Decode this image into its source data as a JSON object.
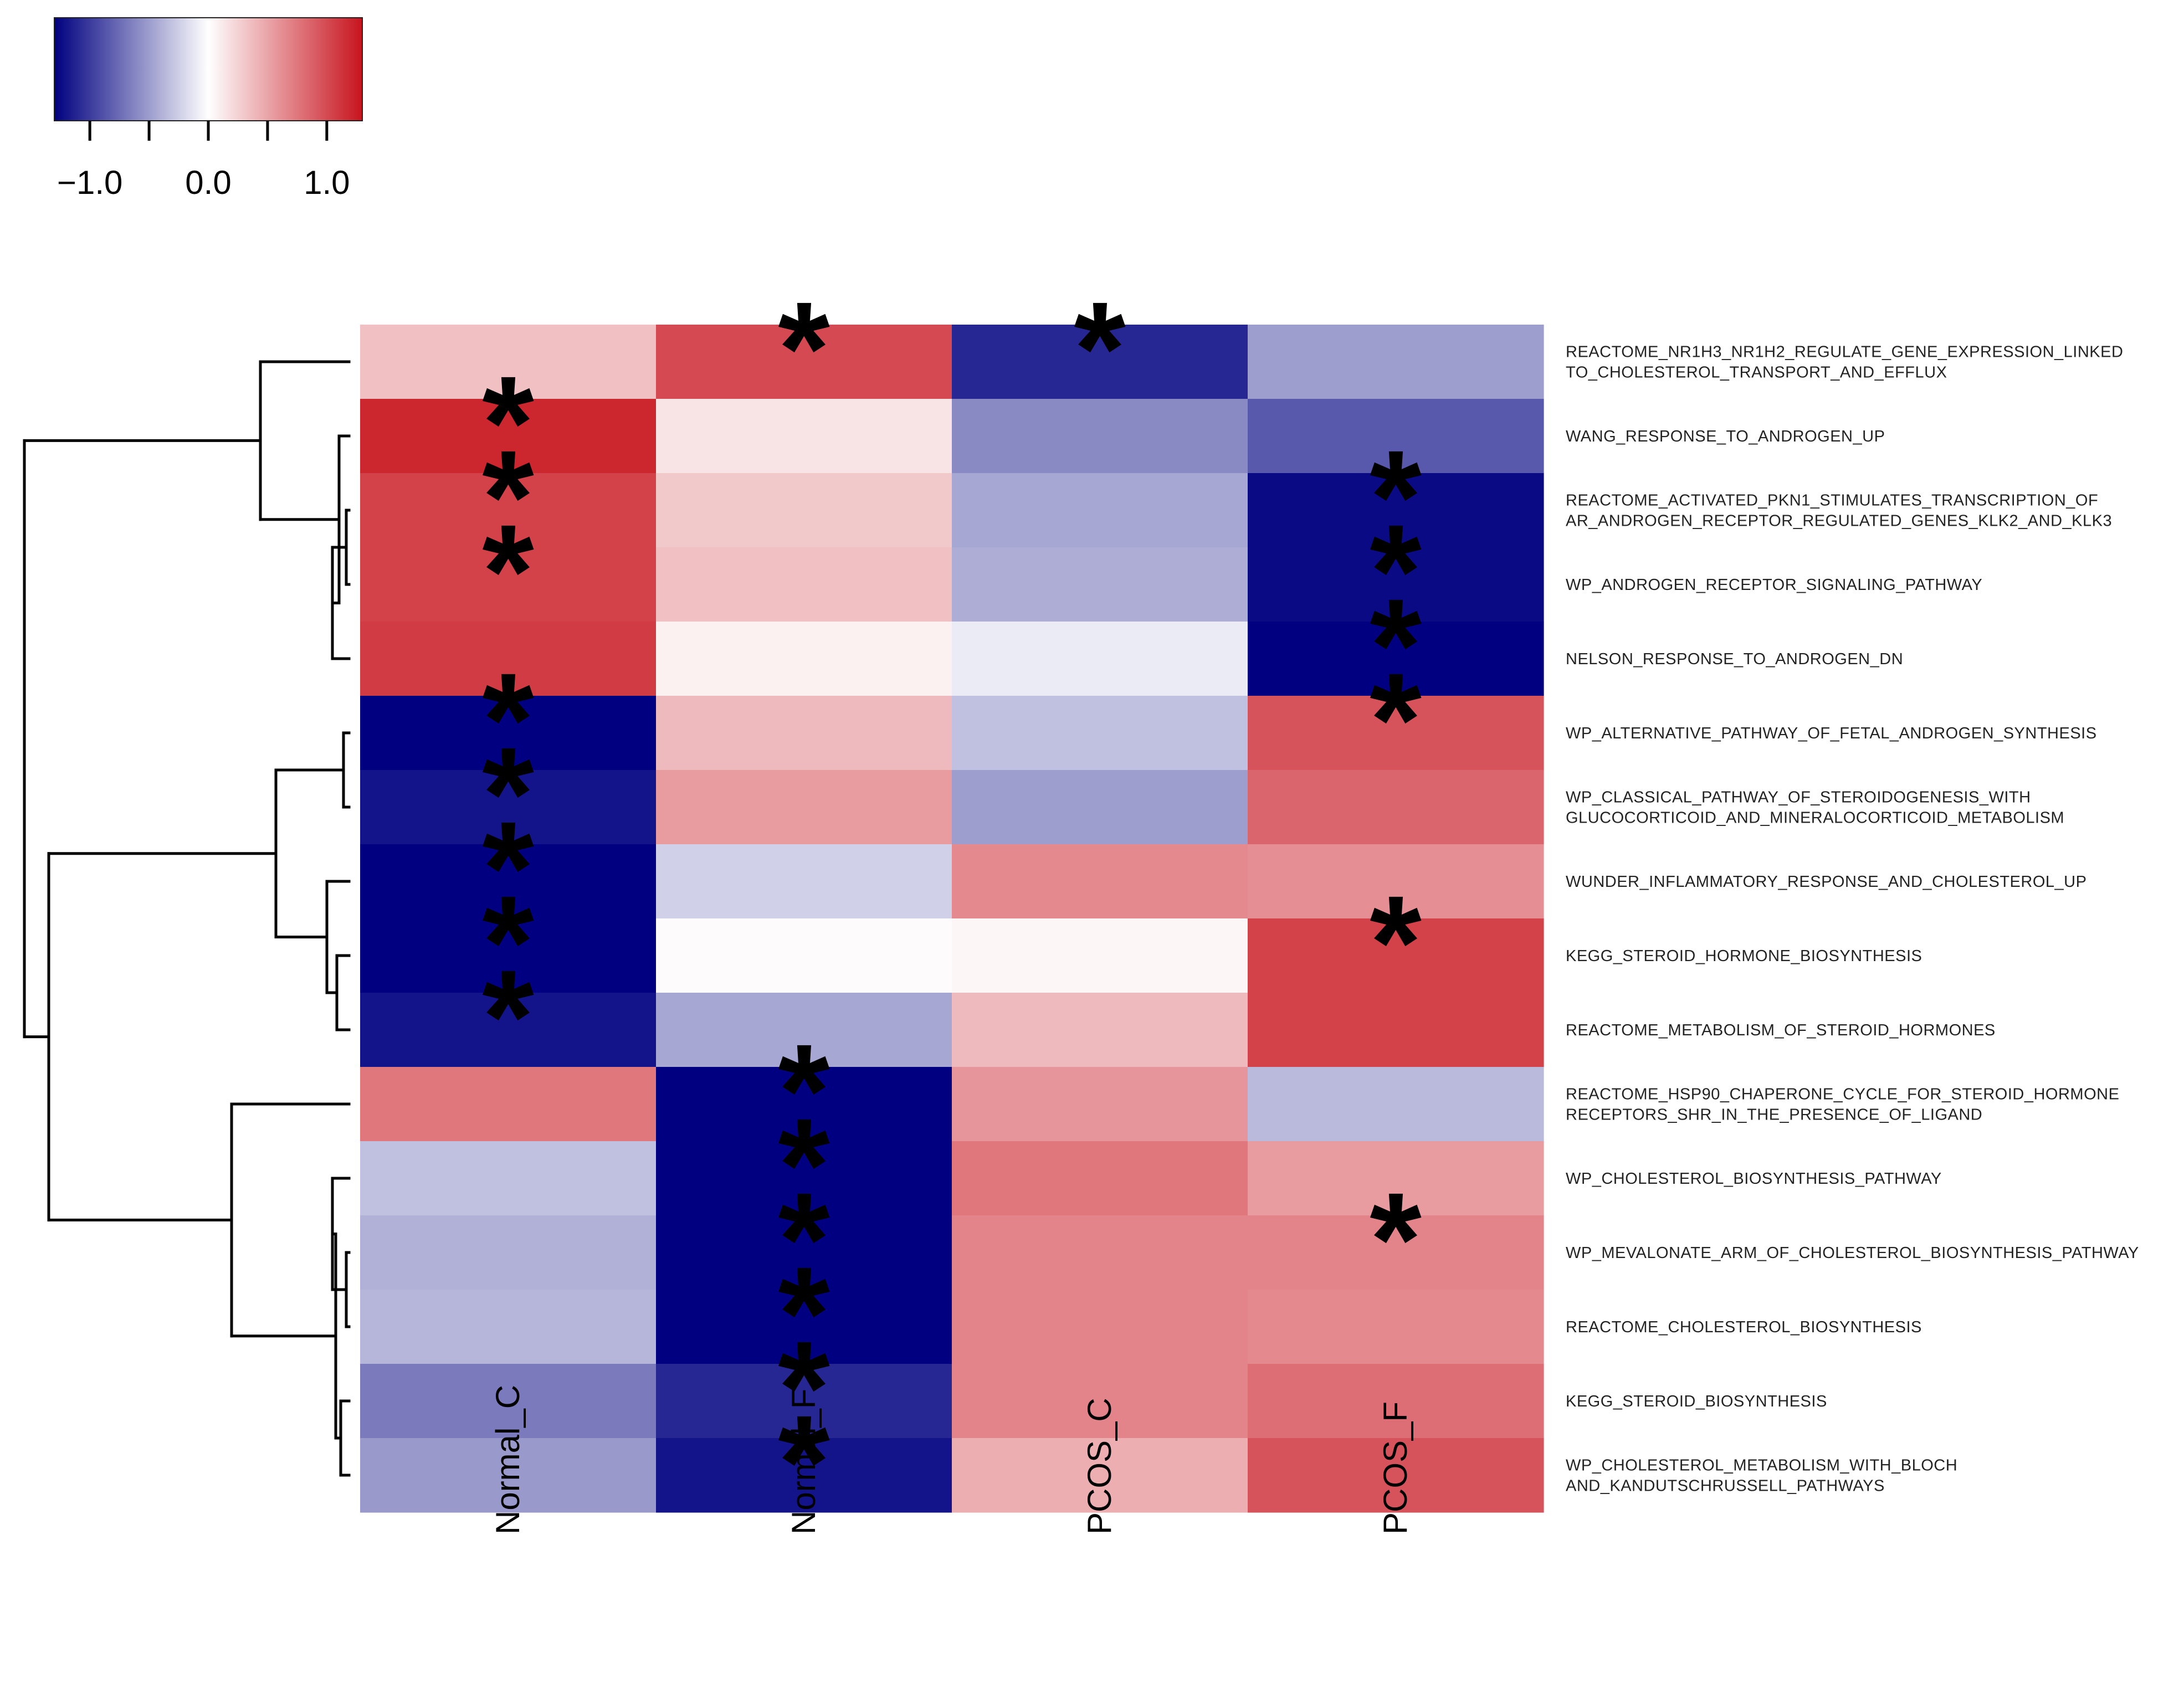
{
  "chart_data": {
    "type": "heatmap",
    "title": "",
    "columns": [
      "Normal_C",
      "Normal_F",
      "PCOS_C",
      "PCOS_F"
    ],
    "rows": [
      "REACTOME_NR1H3_NR1H2_REGULATE_GENE_EXPRESSION_LINKED_TO_CHOLESTEROL_TRANSPORT_AND_EFFLUX",
      "WANG_RESPONSE_TO_ANDROGEN_UP",
      "REACTOME_ACTIVATED_PKN1_STIMULATES_TRANSCRIPTION_OF_AR_ANDROGEN_RECEPTOR_REGULATED_GENES_KLK2_AND_KLK3",
      "WP_ANDROGEN_RECEPTOR_SIGNALING_PATHWAY",
      "NELSON_RESPONSE_TO_ANDROGEN_DN",
      "WP_ALTERNATIVE_PATHWAY_OF_FETAL_ANDROGEN_SYNTHESIS",
      "WP_CLASSICAL_PATHWAY_OF_STEROIDOGENESIS_WITH_GLUCOCORTICOID_AND_MINERALOCORTICOID_METABOLISM",
      "WUNDER_INFLAMMATORY_RESPONSE_AND_CHOLESTEROL_UP",
      "KEGG_STEROID_HORMONE_BIOSYNTHESIS",
      "REACTOME_METABOLISM_OF_STEROID_HORMONES",
      "REACTOME_HSP90_CHAPERONE_CYCLE_FOR_STEROID_HORMONE_RECEPTORS_SHR_IN_THE_PRESENCE_OF_LIGAND",
      "WP_CHOLESTEROL_BIOSYNTHESIS_PATHWAY",
      "WP_MEVALONATE_ARM_OF_CHOLESTEROL_BIOSYNTHESIS_PATHWAY",
      "REACTOME_CHOLESTEROL_BIOSYNTHESIS",
      "KEGG_STEROID_BIOSYNTHESIS",
      "WP_CHOLESTEROL_METABOLISM_WITH_BLOCH_AND_KANDUTSCHRUSSELL_PATHWAYS"
    ],
    "row_labels_display": [
      [
        "REACTOME_NR1H3_NR1H2_REGULATE_GENE_EXPRESSION_LINKED",
        "TO_CHOLESTEROL_TRANSPORT_AND_EFFLUX"
      ],
      [
        "WANG_RESPONSE_TO_ANDROGEN_UP"
      ],
      [
        "REACTOME_ACTIVATED_PKN1_STIMULATES_TRANSCRIPTION_OF",
        "AR_ANDROGEN_RECEPTOR_REGULATED_GENES_KLK2_AND_KLK3"
      ],
      [
        "WP_ANDROGEN_RECEPTOR_SIGNALING_PATHWAY"
      ],
      [
        "NELSON_RESPONSE_TO_ANDROGEN_DN"
      ],
      [
        "WP_ALTERNATIVE_PATHWAY_OF_FETAL_ANDROGEN_SYNTHESIS"
      ],
      [
        "WP_CLASSICAL_PATHWAY_OF_STEROIDOGENESIS_WITH",
        "GLUCOCORTICOID_AND_MINERALOCORTICOID_METABOLISM"
      ],
      [
        "WUNDER_INFLAMMATORY_RESPONSE_AND_CHOLESTEROL_UP"
      ],
      [
        "KEGG_STEROID_HORMONE_BIOSYNTHESIS"
      ],
      [
        "REACTOME_METABOLISM_OF_STEROID_HORMONES"
      ],
      [
        "REACTOME_HSP90_CHAPERONE_CYCLE_FOR_STEROID_HORMONE",
        "RECEPTORS_SHR_IN_THE_PRESENCE_OF_LIGAND"
      ],
      [
        "WP_CHOLESTEROL_BIOSYNTHESIS_PATHWAY"
      ],
      [
        "WP_MEVALONATE_ARM_OF_CHOLESTEROL_BIOSYNTHESIS_PATHWAY"
      ],
      [
        "REACTOME_CHOLESTEROL_BIOSYNTHESIS"
      ],
      [
        "KEGG_STEROID_BIOSYNTHESIS"
      ],
      [
        "WP_CHOLESTEROL_METABOLISM_WITH_BLOCH",
        "AND_KANDUTSCHRUSSELL_PATHWAYS"
      ]
    ],
    "values": [
      [
        0.35,
        1.0,
        -1.1,
        -0.5
      ],
      [
        1.2,
        0.15,
        -0.6,
        -0.85
      ],
      [
        1.05,
        0.3,
        -0.45,
        -1.25
      ],
      [
        1.05,
        0.35,
        -0.42,
        -1.25
      ],
      [
        1.08,
        0.08,
        -0.1,
        -1.45
      ],
      [
        -1.3,
        0.38,
        -0.32,
        0.95
      ],
      [
        -1.2,
        0.55,
        -0.5,
        0.85
      ],
      [
        -1.5,
        -0.24,
        0.65,
        0.62
      ],
      [
        -1.4,
        0.02,
        0.05,
        1.05
      ],
      [
        -1.2,
        -0.45,
        0.38,
        1.05
      ],
      [
        0.75,
        -1.45,
        0.58,
        -0.35
      ],
      [
        -0.32,
        -1.45,
        0.75,
        0.55
      ],
      [
        -0.4,
        -1.38,
        0.68,
        0.68
      ],
      [
        -0.37,
        -1.42,
        0.68,
        0.65
      ],
      [
        -0.68,
        -1.1,
        0.68,
        0.8
      ],
      [
        -0.52,
        -1.2,
        0.45,
        0.95
      ]
    ],
    "significant": [
      [
        false,
        true,
        true,
        false
      ],
      [
        true,
        false,
        false,
        false
      ],
      [
        true,
        false,
        false,
        true
      ],
      [
        true,
        false,
        false,
        true
      ],
      [
        false,
        false,
        false,
        true
      ],
      [
        true,
        false,
        false,
        true
      ],
      [
        true,
        false,
        false,
        false
      ],
      [
        true,
        false,
        false,
        false
      ],
      [
        true,
        false,
        false,
        true
      ],
      [
        true,
        false,
        false,
        false
      ],
      [
        false,
        true,
        false,
        false
      ],
      [
        false,
        true,
        false,
        false
      ],
      [
        false,
        true,
        false,
        true
      ],
      [
        false,
        true,
        false,
        false
      ],
      [
        false,
        true,
        false,
        false
      ],
      [
        false,
        true,
        false,
        false
      ]
    ],
    "significance_marker": "*",
    "color_scale": {
      "range": [
        -1.3,
        1.3
      ],
      "low": "#000080",
      "mid": "#FFFFFF",
      "high": "#C8141E",
      "tick_values": [
        -1.0,
        -0.5,
        0.0,
        0.5,
        1.0
      ],
      "tick_labels": [
        "−1.0",
        "0.0",
        "1.0"
      ],
      "tick_label_values": [
        -1.0,
        0.0,
        1.0
      ]
    },
    "row_dendrogram": true,
    "legend_position": "top-left",
    "xlabel": "",
    "ylabel": ""
  }
}
